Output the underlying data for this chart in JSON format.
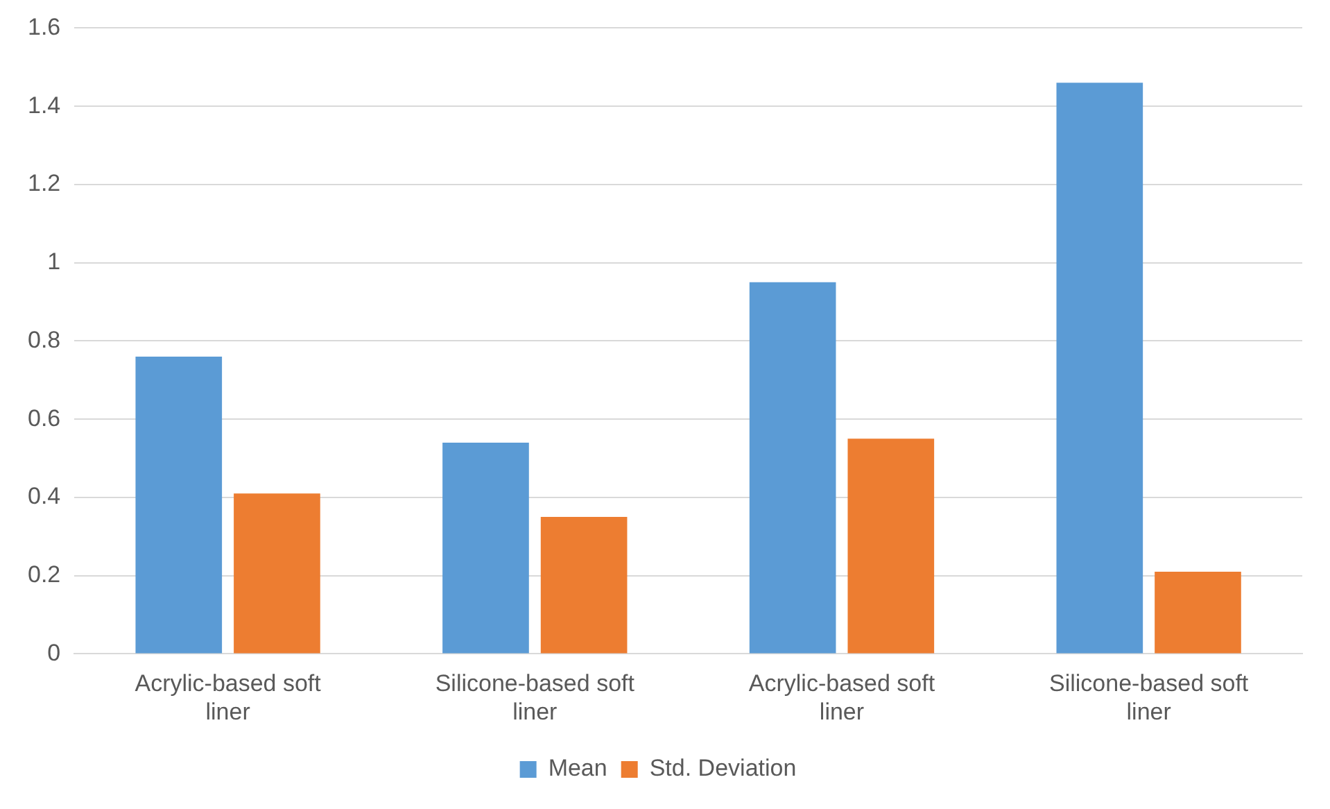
{
  "chart_data": {
    "type": "bar",
    "categories": [
      "Acrylic-based soft liner",
      "Silicone-based soft liner",
      "Acrylic-based soft liner",
      "Silicone-based soft liner"
    ],
    "series": [
      {
        "name": "Mean",
        "color": "#5b9bd5",
        "values": [
          0.76,
          0.54,
          0.95,
          1.46
        ]
      },
      {
        "name": "Std. Deviation",
        "color": "#ed7d31",
        "values": [
          0.41,
          0.35,
          0.55,
          0.21
        ]
      }
    ],
    "ylim": [
      0,
      1.6
    ],
    "yticks": [
      0,
      0.2,
      0.4,
      0.6,
      0.8,
      1,
      1.2,
      1.4,
      1.6
    ],
    "grid": "y",
    "legend": "bottom"
  }
}
